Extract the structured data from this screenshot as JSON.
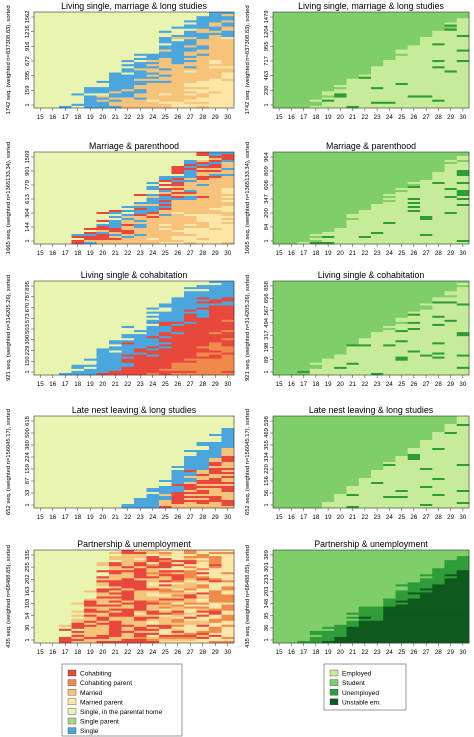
{
  "chart_data": [
    {
      "type": "heatmap",
      "title": "Living single, marriage & long studies",
      "ylabel": "1742 seq. (weighted n=837308.83), sorted",
      "yticks": [
        "1",
        "159",
        "395",
        "672",
        "916",
        "1216",
        "1562"
      ],
      "x": [
        "15",
        "16",
        "17",
        "18",
        "19",
        "20",
        "21",
        "22",
        "23",
        "24",
        "25",
        "26",
        "27",
        "28",
        "29",
        "30"
      ],
      "palette": "family"
    },
    {
      "type": "heatmap",
      "title": "Living single, marriage & long studies",
      "ylabel": "1742 seq. (weighted n=837308.83), sorted",
      "yticks": [
        "1",
        "230",
        "463",
        "717",
        "955",
        "1204",
        "1479"
      ],
      "x": [
        "15",
        "16",
        "17",
        "18",
        "19",
        "20",
        "21",
        "22",
        "23",
        "24",
        "25",
        "26",
        "27",
        "28",
        "29",
        "30"
      ],
      "palette": "work"
    },
    {
      "type": "heatmap",
      "title": "Marriage & parenthood",
      "ylabel": "1665 seq. (weighted n=1365133.34), sorted",
      "yticks": [
        "1",
        "144",
        "304",
        "613",
        "779",
        "901",
        "1509"
      ],
      "x": [
        "15",
        "16",
        "17",
        "18",
        "19",
        "20",
        "21",
        "22",
        "23",
        "24",
        "25",
        "26",
        "27",
        "28",
        "29",
        "30"
      ],
      "palette": "family"
    },
    {
      "type": "heatmap",
      "title": "Marriage & parenthood",
      "ylabel": "1665 seq. (weighted n=1365133.34), sorted",
      "yticks": [
        "1",
        "84",
        "200",
        "347",
        "608",
        "809",
        "964"
      ],
      "x": [
        "15",
        "16",
        "17",
        "18",
        "19",
        "20",
        "21",
        "22",
        "23",
        "24",
        "25",
        "26",
        "27",
        "28",
        "29",
        "30"
      ],
      "palette": "work"
    },
    {
      "type": "heatmap",
      "title": "Living single & cohabitation",
      "ylabel": "921 seq. (weighted n=314205.26), sorted",
      "yticks": [
        "1",
        "150",
        "229",
        "390",
        "503",
        "573",
        "670",
        "787",
        "895"
      ],
      "x": [
        "15",
        "16",
        "17",
        "18",
        "19",
        "20",
        "21",
        "22",
        "23",
        "24",
        "25",
        "26",
        "27",
        "28",
        "29",
        "30"
      ],
      "palette": "family"
    },
    {
      "type": "heatmap",
      "title": "Living single & cohabitation",
      "ylabel": "921 seq. (weighted n=314205.26), sorted",
      "yticks": [
        "1",
        "89",
        "198",
        "317",
        "494",
        "567",
        "656",
        "858"
      ],
      "x": [
        "15",
        "16",
        "17",
        "18",
        "19",
        "20",
        "21",
        "22",
        "23",
        "24",
        "25",
        "26",
        "27",
        "28",
        "29",
        "30"
      ],
      "palette": "work"
    },
    {
      "type": "heatmap",
      "title": "Late nest leaving & long studies",
      "ylabel": "652 seq. (weighted n=156045.17), sorted",
      "yticks": [
        "1",
        "33",
        "87",
        "159",
        "224",
        "380",
        "500",
        "618"
      ],
      "x": [
        "15",
        "16",
        "17",
        "18",
        "19",
        "20",
        "21",
        "22",
        "23",
        "24",
        "25",
        "26",
        "27",
        "28",
        "29",
        "30"
      ],
      "palette": "family"
    },
    {
      "type": "heatmap",
      "title": "Late nest leaving & long studies",
      "ylabel": "652 seq. (weighted n=156045.17), sorted",
      "yticks": [
        "1",
        "56",
        "156",
        "220",
        "334",
        "355",
        "469",
        "598"
      ],
      "x": [
        "15",
        "16",
        "17",
        "18",
        "19",
        "20",
        "21",
        "22",
        "23",
        "24",
        "25",
        "26",
        "27",
        "28",
        "29",
        "30"
      ],
      "palette": "work"
    },
    {
      "type": "heatmap",
      "title": "Partnership & unemployment",
      "ylabel": "435 seq. (weighted n=68488.85), sorted",
      "yticks": [
        "1",
        "30",
        "54",
        "103",
        "163",
        "202",
        "255",
        "335"
      ],
      "x": [
        "15",
        "16",
        "17",
        "18",
        "19",
        "20",
        "21",
        "22",
        "23",
        "24",
        "25",
        "26",
        "27",
        "28",
        "29",
        "30"
      ],
      "palette": "family"
    },
    {
      "type": "heatmap",
      "title": "Partnership & unemployment",
      "ylabel": "435 seq. (weighted n=68488.85), sorted",
      "yticks": [
        "1",
        "36",
        "95",
        "148",
        "203",
        "233",
        "301",
        "389"
      ],
      "x": [
        "15",
        "16",
        "17",
        "18",
        "19",
        "20",
        "21",
        "22",
        "23",
        "24",
        "25",
        "26",
        "27",
        "28",
        "29",
        "30"
      ],
      "palette": "work"
    }
  ],
  "legends": {
    "family": [
      {
        "label": "Cohabiting",
        "color": "#e8483c"
      },
      {
        "label": "Cohabiting parent",
        "color": "#f08a4b"
      },
      {
        "label": "Married",
        "color": "#f7c27a"
      },
      {
        "label": "Married parent",
        "color": "#fde7a8"
      },
      {
        "label": "Single, in the parental home",
        "color": "#e8f4b0"
      },
      {
        "label": "Single parent",
        "color": "#a9d88a"
      },
      {
        "label": "Single",
        "color": "#4aa6dc"
      }
    ],
    "work": [
      {
        "label": "Employed",
        "color": "#c6ec9a"
      },
      {
        "label": "Student",
        "color": "#7fce6a"
      },
      {
        "label": "Unemployed",
        "color": "#2f9c3a"
      },
      {
        "label": "Unstable em.",
        "color": "#0e5a1c"
      }
    ]
  }
}
